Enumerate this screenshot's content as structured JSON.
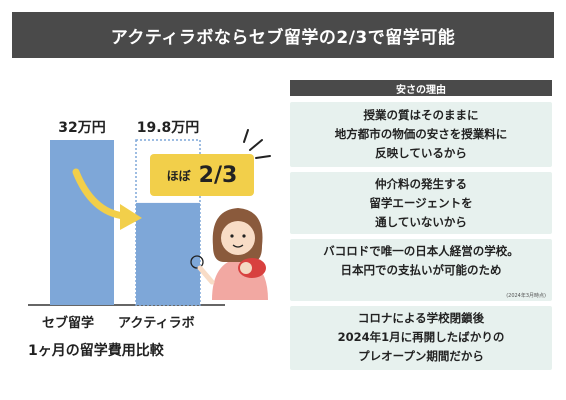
{
  "title": "アクティラボならセブ留学の2/3で留学可能",
  "chart_data": {
    "type": "bar",
    "title": "1ヶ月の留学費用比較",
    "categories": [
      "セブ留学",
      "アクティラボ"
    ],
    "values": [
      32,
      19.8
    ],
    "value_labels": [
      "32万円",
      "19.8万円"
    ],
    "unit": "万円",
    "ylim": [
      0,
      32
    ],
    "bar_color": "#7ea7d8",
    "ghost_outline_color": "#7ea7d8",
    "arrow_color": "#f2cf4a"
  },
  "badge": {
    "prefix": "ほぼ",
    "value": "2/3"
  },
  "reasons": {
    "header": "安さの理由",
    "cards": [
      {
        "lines": [
          "授業の質はそのままに",
          "地方都市の物価の安さを授業料に",
          "反映しているから"
        ]
      },
      {
        "lines": [
          "仲介料の発生する",
          "留学エージェントを",
          "通していないから"
        ]
      },
      {
        "lines": [
          "バコロドで唯一の日本人経営の学校。",
          "日本円での支払いが可能のため"
        ],
        "note": "(2024年3月時点)"
      },
      {
        "lines": [
          "コロナによる学校閉鎖後",
          "2024年1月に再開したばかりの",
          "プレオープン期間だから"
        ]
      }
    ]
  },
  "colors": {
    "dark": "#4a4a4a",
    "card_bg": "#e7f1ee",
    "accent_yellow": "#f2cf4a"
  }
}
